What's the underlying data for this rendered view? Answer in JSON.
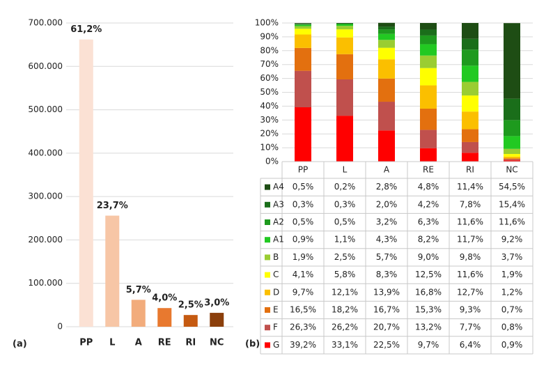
{
  "chart_data": [
    {
      "type": "bar",
      "panel_label": "(a)",
      "categories": [
        "PP",
        "L",
        "A",
        "RE",
        "RI",
        "NC"
      ],
      "values": [
        662000,
        256000,
        62000,
        43000,
        27000,
        32000
      ],
      "share_labels": [
        "61,2%",
        "23,7%",
        "5,7%",
        "4,0%",
        "2,5%",
        "3,0%"
      ],
      "colors": [
        "#fbe1d4",
        "#f7c6a6",
        "#f2ac7c",
        "#e8792f",
        "#c55a11",
        "#8b3f0b"
      ],
      "ylim": [
        0,
        700000
      ],
      "yticks": [
        0,
        {
          "value": 100000,
          "label": "100.000"
        },
        {
          "value": 200000,
          "label": "200.000"
        },
        {
          "value": 300000,
          "label": "300.000"
        },
        {
          "value": 400000,
          "label": "400.000"
        },
        {
          "value": 500000,
          "label": "500.000"
        },
        {
          "value": 600000,
          "label": "600.000"
        },
        {
          "value": 700000,
          "label": "700.000"
        }
      ],
      "grid": true
    },
    {
      "type": "stacked_bar",
      "panel_label": "(b)",
      "categories": [
        "PP",
        "L",
        "A",
        "RE",
        "RI",
        "NC"
      ],
      "ylim": [
        0,
        100
      ],
      "yticks": [
        {
          "value": 0,
          "label": "0%"
        },
        {
          "value": 10,
          "label": "10%"
        },
        {
          "value": 20,
          "label": "20%"
        },
        {
          "value": 30,
          "label": "30%"
        },
        {
          "value": 40,
          "label": "40%"
        },
        {
          "value": 50,
          "label": "50%"
        },
        {
          "value": 60,
          "label": "60%"
        },
        {
          "value": 70,
          "label": "70%"
        },
        {
          "value": 80,
          "label": "80%"
        },
        {
          "value": 90,
          "label": "90%"
        },
        {
          "value": 100,
          "label": "100%"
        }
      ],
      "grid": true,
      "series": [
        {
          "name": "A4",
          "color": "#1e4d14",
          "values": [
            0.5,
            0.2,
            2.8,
            4.8,
            11.4,
            54.5
          ],
          "value_labels": [
            "0,5%",
            "0,2%",
            "2,8%",
            "4,8%",
            "11,4%",
            "54,5%"
          ]
        },
        {
          "name": "A3",
          "color": "#1a6e1a",
          "values": [
            0.3,
            0.3,
            2.0,
            4.2,
            7.8,
            15.4
          ],
          "value_labels": [
            "0,3%",
            "0,3%",
            "2,0%",
            "4,2%",
            "7,8%",
            "15,4%"
          ]
        },
        {
          "name": "A2",
          "color": "#1e9a1e",
          "values": [
            0.5,
            0.5,
            3.2,
            6.3,
            11.6,
            11.6
          ],
          "value_labels": [
            "0,5%",
            "0,5%",
            "3,2%",
            "6,3%",
            "11,6%",
            "11,6%"
          ]
        },
        {
          "name": "A1",
          "color": "#22c922",
          "values": [
            0.9,
            1.1,
            4.3,
            8.2,
            11.7,
            9.2
          ],
          "value_labels": [
            "0,9%",
            "1,1%",
            "4,3%",
            "8,2%",
            "11,7%",
            "9,2%"
          ]
        },
        {
          "name": "B",
          "color": "#9acd32",
          "values": [
            1.9,
            2.5,
            5.7,
            9.0,
            9.8,
            3.7
          ],
          "value_labels": [
            "1,9%",
            "2,5%",
            "5,7%",
            "9,0%",
            "9,8%",
            "3,7%"
          ]
        },
        {
          "name": "C",
          "color": "#ffff00",
          "values": [
            4.1,
            5.8,
            8.3,
            12.5,
            11.6,
            1.9
          ],
          "value_labels": [
            "4,1%",
            "5,8%",
            "8,3%",
            "12,5%",
            "11,6%",
            "1,9%"
          ]
        },
        {
          "name": "D",
          "color": "#fbbf00",
          "values": [
            9.7,
            12.1,
            13.9,
            16.8,
            12.7,
            1.2
          ],
          "value_labels": [
            "9,7%",
            "12,1%",
            "13,9%",
            "16,8%",
            "12,7%",
            "1,2%"
          ]
        },
        {
          "name": "E",
          "color": "#e3700f",
          "values": [
            16.5,
            18.2,
            16.7,
            15.3,
            9.3,
            0.7
          ],
          "value_labels": [
            "16,5%",
            "18,2%",
            "16,7%",
            "15,3%",
            "9,3%",
            "0,7%"
          ]
        },
        {
          "name": "F",
          "color": "#c0504d",
          "values": [
            26.3,
            26.2,
            20.7,
            13.2,
            7.7,
            0.8
          ],
          "value_labels": [
            "26,3%",
            "26,2%",
            "20,7%",
            "13,2%",
            "7,7%",
            "0,8%"
          ]
        },
        {
          "name": "G",
          "color": "#ff0000",
          "values": [
            39.2,
            33.1,
            22.5,
            9.7,
            6.4,
            0.9
          ],
          "value_labels": [
            "39,2%",
            "33,1%",
            "22,5%",
            "9,7%",
            "6,4%",
            "0,9%"
          ]
        }
      ]
    }
  ]
}
